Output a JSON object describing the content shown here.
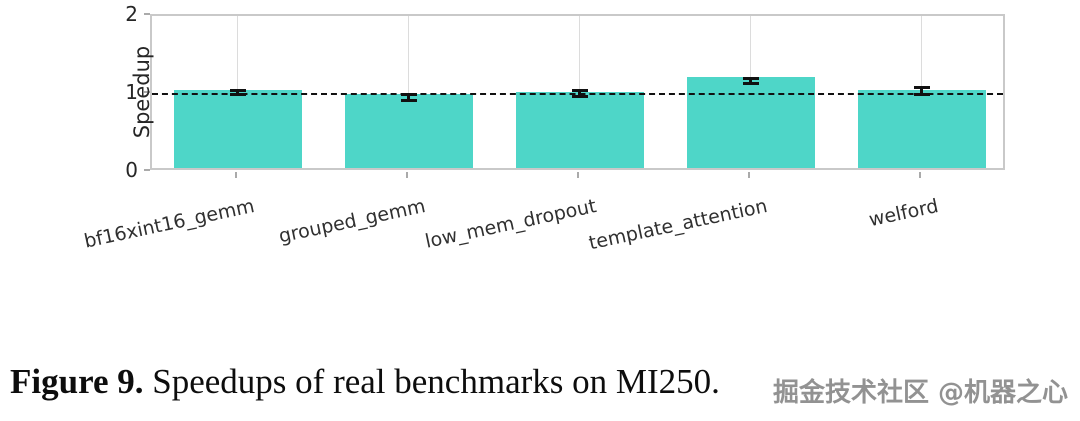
{
  "figure": {
    "caption_label": "Figure 9.",
    "caption_text": " Speedups of real benchmarks on MI250."
  },
  "watermark": "掘金技术社区 @机器之心",
  "chart_data": {
    "type": "bar",
    "title": "",
    "xlabel": "",
    "ylabel": "Speedup",
    "ylim": [
      0,
      2
    ],
    "yticks": [
      0,
      1,
      2
    ],
    "reference_line": 1.0,
    "reference_line_style": "dashed-black",
    "grid": "vertical-category-gridlines",
    "legend": "none",
    "bar_color": "#4ED6C8",
    "error_bar_color": "#111111",
    "categories": [
      "bf16xint16_gemm",
      "grouped_gemm",
      "low_mem_dropout",
      "template_attention",
      "welford"
    ],
    "values": [
      1.0,
      0.95,
      0.97,
      1.17,
      1.0
    ],
    "error_bars": [
      [
        0.99,
        1.04
      ],
      [
        0.92,
        0.99
      ],
      [
        0.97,
        1.05
      ],
      [
        1.14,
        1.2
      ],
      [
        1.0,
        1.08
      ]
    ]
  }
}
